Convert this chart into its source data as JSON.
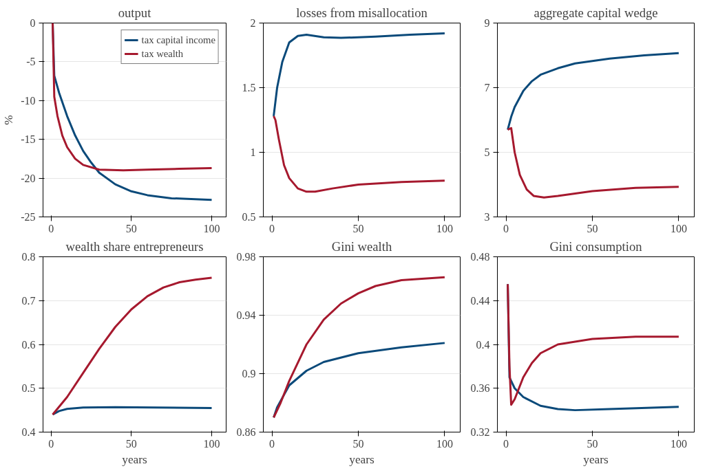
{
  "chart_data": [
    {
      "type": "line",
      "title": "output",
      "ylabel": "%",
      "xlim": [
        -5,
        109
      ],
      "xticks": [
        0,
        50,
        100
      ],
      "ylim": [
        -25,
        0
      ],
      "yticks": [
        -25,
        -20,
        -15,
        -10,
        -5,
        0
      ],
      "grid": "y",
      "legend": "top right",
      "series": [
        {
          "name": "tax capital income",
          "color": "#0b4a7a",
          "x": [
            1,
            2,
            5,
            10,
            15,
            20,
            25,
            30,
            40,
            50,
            60,
            75,
            100
          ],
          "values": [
            0,
            -6.8,
            -9,
            -12,
            -14.5,
            -16.5,
            -18,
            -19.3,
            -20.8,
            -21.7,
            -22.2,
            -22.6,
            -22.8
          ]
        },
        {
          "name": "tax wealth",
          "color": "#a6192e",
          "x": [
            1,
            2,
            4,
            7,
            10,
            15,
            20,
            30,
            45,
            60,
            80,
            100
          ],
          "values": [
            0,
            -9.5,
            -12,
            -14.5,
            -16,
            -17.5,
            -18.3,
            -18.9,
            -19,
            -18.9,
            -18.8,
            -18.7
          ]
        }
      ]
    },
    {
      "type": "line",
      "title": "losses from misallocation",
      "xlim": [
        -5,
        109
      ],
      "xticks": [
        0,
        50,
        100
      ],
      "ylim": [
        0.5,
        2
      ],
      "yticks": [
        0.5,
        1,
        1.5,
        2
      ],
      "grid": "y",
      "series": [
        {
          "color": "#0b4a7a",
          "x": [
            1,
            3,
            6,
            10,
            15,
            20,
            30,
            40,
            60,
            80,
            100
          ],
          "values": [
            1.28,
            1.5,
            1.7,
            1.85,
            1.9,
            1.91,
            1.89,
            1.885,
            1.895,
            1.91,
            1.92
          ]
        },
        {
          "color": "#a6192e",
          "x": [
            1,
            2,
            4,
            7,
            10,
            15,
            20,
            25,
            35,
            50,
            75,
            100
          ],
          "values": [
            1.28,
            1.25,
            1.1,
            0.9,
            0.8,
            0.72,
            0.695,
            0.695,
            0.72,
            0.75,
            0.77,
            0.78
          ]
        }
      ]
    },
    {
      "type": "line",
      "title": "aggregate capital wedge",
      "xlim": [
        -5,
        109
      ],
      "xticks": [
        0,
        50,
        100
      ],
      "ylim": [
        3,
        9
      ],
      "yticks": [
        3,
        5,
        7,
        9
      ],
      "grid": "y",
      "series": [
        {
          "color": "#0b4a7a",
          "x": [
            1,
            3,
            5,
            10,
            15,
            20,
            30,
            40,
            60,
            80,
            100
          ],
          "values": [
            5.7,
            6.1,
            6.4,
            6.9,
            7.2,
            7.4,
            7.6,
            7.75,
            7.9,
            8.0,
            8.07
          ]
        },
        {
          "color": "#a6192e",
          "x": [
            1,
            3,
            5,
            8,
            12,
            16,
            22,
            30,
            50,
            75,
            100
          ],
          "values": [
            5.7,
            5.75,
            5.0,
            4.3,
            3.85,
            3.65,
            3.6,
            3.65,
            3.8,
            3.9,
            3.93
          ]
        }
      ]
    },
    {
      "type": "line",
      "title": "wealth share entrepreneurs",
      "xlabel": "years",
      "xlim": [
        -5,
        109
      ],
      "xticks": [
        0,
        50,
        100
      ],
      "ylim": [
        0.4,
        0.8
      ],
      "yticks": [
        0.4,
        0.5,
        0.6,
        0.7,
        0.8
      ],
      "grid": "y",
      "series": [
        {
          "color": "#0b4a7a",
          "x": [
            1,
            5,
            10,
            20,
            40,
            100
          ],
          "values": [
            0.44,
            0.448,
            0.453,
            0.456,
            0.457,
            0.455
          ]
        },
        {
          "color": "#a6192e",
          "x": [
            1,
            10,
            20,
            30,
            40,
            50,
            60,
            70,
            80,
            90,
            100
          ],
          "values": [
            0.44,
            0.48,
            0.535,
            0.59,
            0.64,
            0.68,
            0.71,
            0.73,
            0.742,
            0.748,
            0.752
          ]
        }
      ]
    },
    {
      "type": "line",
      "title": "Gini wealth",
      "xlabel": "years",
      "xlim": [
        -5,
        109
      ],
      "xticks": [
        0,
        50,
        100
      ],
      "ylim": [
        0.86,
        0.98
      ],
      "yticks": [
        0.86,
        0.9,
        0.94,
        0.98
      ],
      "grid": "y",
      "series": [
        {
          "color": "#0b4a7a",
          "x": [
            1,
            3,
            10,
            20,
            30,
            50,
            75,
            100
          ],
          "values": [
            0.87,
            0.877,
            0.892,
            0.902,
            0.908,
            0.914,
            0.918,
            0.921
          ]
        },
        {
          "color": "#a6192e",
          "x": [
            1,
            5,
            10,
            20,
            30,
            40,
            50,
            60,
            75,
            100
          ],
          "values": [
            0.87,
            0.88,
            0.895,
            0.92,
            0.937,
            0.948,
            0.955,
            0.96,
            0.964,
            0.966
          ]
        }
      ]
    },
    {
      "type": "line",
      "title": "Gini consumption",
      "xlabel": "years",
      "xlim": [
        -5,
        109
      ],
      "xticks": [
        0,
        50,
        100
      ],
      "ylim": [
        0.32,
        0.48
      ],
      "yticks": [
        0.32,
        0.36,
        0.4,
        0.44,
        0.48
      ],
      "grid": "y",
      "series": [
        {
          "color": "#0b4a7a",
          "x": [
            1,
            2,
            5,
            10,
            20,
            30,
            40,
            60,
            100
          ],
          "values": [
            0.455,
            0.37,
            0.36,
            0.352,
            0.344,
            0.341,
            0.34,
            0.341,
            0.343
          ]
        },
        {
          "color": "#a6192e",
          "x": [
            1,
            2,
            3,
            5,
            10,
            15,
            20,
            30,
            50,
            75,
            100
          ],
          "values": [
            0.455,
            0.38,
            0.345,
            0.35,
            0.37,
            0.383,
            0.392,
            0.4,
            0.405,
            0.407,
            0.407
          ]
        }
      ]
    }
  ]
}
